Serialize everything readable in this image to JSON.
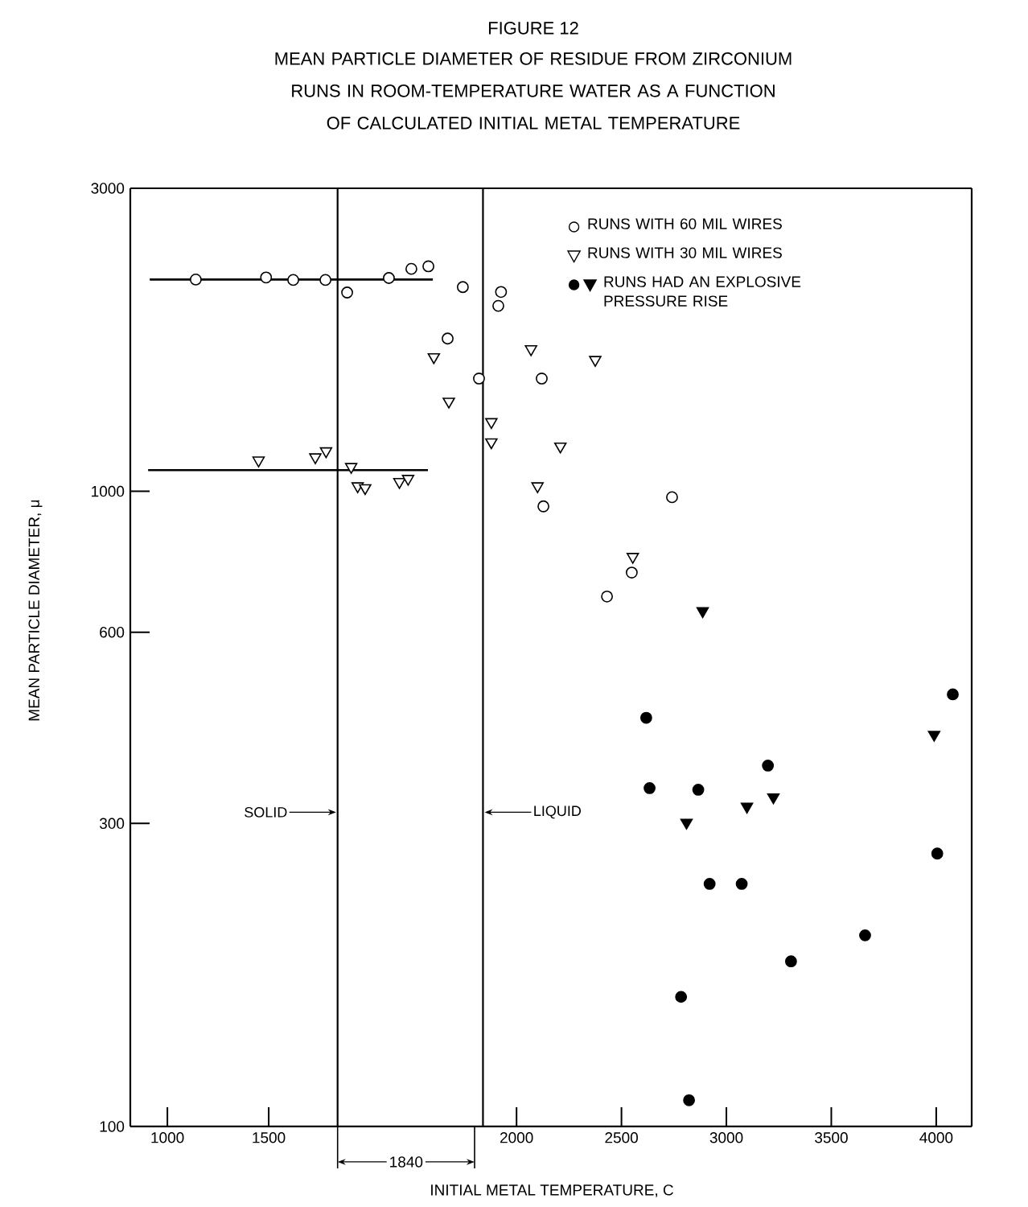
{
  "chart_data": [
    {
      "type": "scatter",
      "ylabel": "MEAN PARTICLE DIAMETER, μ",
      "log": "y",
      "xlim": [
        817,
        2516
      ],
      "ylim": [
        100,
        3000
      ],
      "xticks": [
        1000,
        1500
      ],
      "yticks": [
        100,
        300,
        600,
        1000,
        3000
      ],
      "ref_lines": [
        {
          "axis": "x",
          "value": 1840,
          "label": "SOLID"
        }
      ],
      "annotations": [
        "1840"
      ],
      "series": [
        {
          "marker": "circle",
          "color": "#ffffff",
          "x": [
            1140,
            1487,
            1621,
            1780,
            1887,
            2093,
            2204,
            2288,
            2383,
            2458
          ],
          "values": [
            2155,
            2171,
            2152,
            2152,
            2056,
            2167,
            2240,
            2261,
            1740,
            2097
          ]
        },
        {
          "marker": "triangle",
          "color": "#ffffff",
          "x": [
            1450,
            1730,
            1783,
            1907,
            1939,
            1976,
            2145,
            2188,
            2315,
            2389
          ],
          "values": [
            1119,
            1132,
            1157,
            1093,
            1019,
            1012,
            1035,
            1047,
            1627,
            1385
          ]
        },
        {
          "type": "line",
          "color": "#000000",
          "x": [
            913,
            2310
          ],
          "values": [
            2155,
            2155
          ]
        },
        {
          "type": "line",
          "color": "#000000",
          "x": [
            905,
            2286
          ],
          "values": [
            1080,
            1080
          ]
        }
      ]
    },
    {
      "type": "scatter",
      "title": "FIGURE 12",
      "subtitle": "MEAN PARTICLE DIAMETER OF RESIDUE FROM ZIRCONIUM RUNS IN ROOM-TEMPERATURE WATER AS A FUNCTION OF CALCULATED INITIAL METAL TEMPERATURE",
      "xlabel": "INITIAL METAL TEMPERATURE, C",
      "log": "y",
      "xlim": [
        1800,
        4169
      ],
      "ylim": [
        100,
        3000
      ],
      "tick_labels": "x",
      "xticks": [
        2000,
        2500,
        3000,
        3500,
        4000
      ],
      "legend": "top",
      "ref_lines": [
        {
          "axis": "x",
          "value": 1840,
          "label": "LIQUID"
        }
      ],
      "series": [
        {
          "name": "RUNS WITH 60 MIL WIRES",
          "marker": "circle",
          "color": "#ffffff",
          "x": [
            1821,
            1926,
            1913,
            2120,
            2128,
            2741,
            2549,
            2431
          ],
          "values": [
            1505,
            2060,
            1959,
            1505,
            947,
            979,
            745,
            683
          ]
        },
        {
          "name": "RUNS WITH 30 MIL WIRES",
          "marker": "triangle",
          "color": "#ffffff",
          "x": [
            1880,
            1880,
            2069,
            2209,
            2100,
            2375,
            2554
          ],
          "values": [
            1286,
            1195,
            1675,
            1177,
            1019,
            1611,
            789
          ]
        },
        {
          "marker": "circle",
          "color": "#000000",
          "x": [
            2618,
            2634,
            2866,
            3198,
            2920,
            3073,
            3661,
            3308,
            2784,
            4005,
            2822,
            4079
          ],
          "values": [
            440,
            341,
            339,
            370,
            241,
            241,
            200,
            182,
            160,
            269,
            110,
            479
          ]
        },
        {
          "name": "RUNS HAD AN EXPLOSIVE PRESSURE RISE",
          "marker": "triangle",
          "color": "#000000",
          "x": [
            2887,
            2810,
            3098,
            3224,
            3990
          ],
          "values": [
            648,
            301,
            319,
            330,
            414
          ]
        }
      ]
    }
  ]
}
